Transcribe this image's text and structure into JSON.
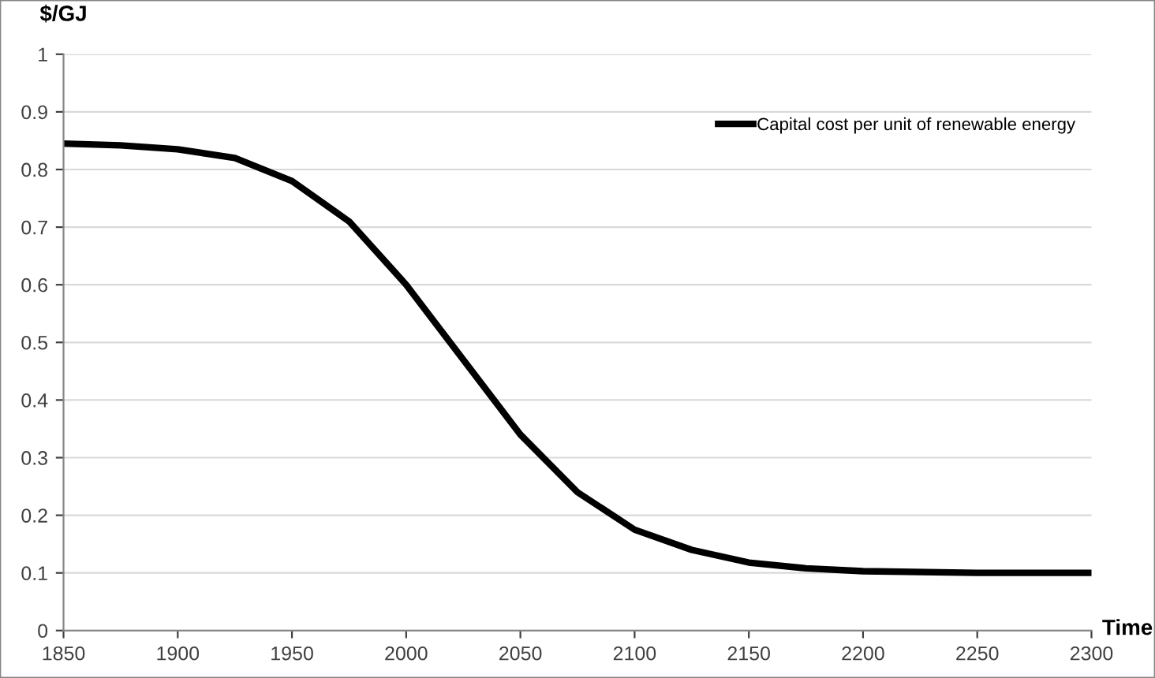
{
  "chart_data": {
    "type": "line",
    "xlabel": "Time",
    "ylabel": "$/GJ",
    "x": [
      1850,
      1875,
      1900,
      1925,
      1950,
      1975,
      2000,
      2025,
      2050,
      2075,
      2100,
      2125,
      2150,
      2175,
      2200,
      2250,
      2300
    ],
    "series": [
      {
        "name": "Capital cost per unit of renewable energy",
        "color": "#000000",
        "values": [
          0.845,
          0.842,
          0.835,
          0.82,
          0.78,
          0.71,
          0.6,
          0.47,
          0.34,
          0.24,
          0.175,
          0.14,
          0.118,
          0.108,
          0.103,
          0.1,
          0.1
        ]
      }
    ],
    "xlim": [
      1850,
      2300
    ],
    "xticks": [
      1850,
      1900,
      1950,
      2000,
      2050,
      2100,
      2150,
      2200,
      2250,
      2300
    ],
    "ylim": [
      0,
      1
    ],
    "yticks": [
      0,
      0.1,
      0.2,
      0.3,
      0.4,
      0.5,
      0.6,
      0.7,
      0.8,
      0.9,
      1
    ],
    "grid": "y",
    "legend": "top right",
    "marker": "none",
    "line_style": "solid"
  }
}
